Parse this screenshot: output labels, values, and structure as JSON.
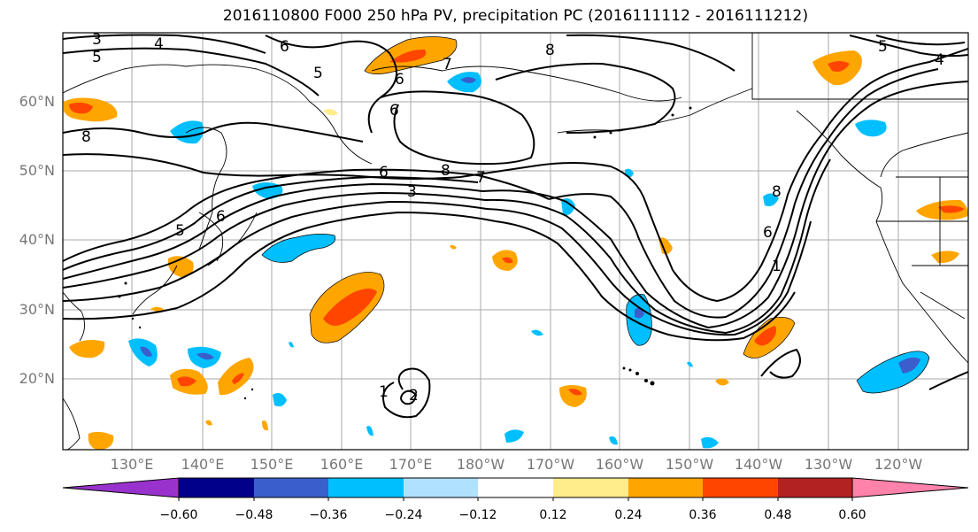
{
  "title": "2016110800 F000 250 hPa PV, precipitation PC (2016111112 - 2016111212)",
  "lat_labels": [
    "60°N",
    "50°N",
    "40°N",
    "30°N",
    "20°N"
  ],
  "lon_labels": [
    "130°E",
    "140°E",
    "150°E",
    "160°E",
    "170°E",
    "180°W",
    "170°W",
    "160°W",
    "150°W",
    "140°W",
    "130°W",
    "120°W"
  ],
  "colorbar": {
    "tick_labels": [
      "−0.60",
      "−0.48",
      "−0.36",
      "−0.24",
      "−0.12",
      "0.12",
      "0.24",
      "0.36",
      "0.48",
      "0.60"
    ],
    "colors": [
      "#9932CC",
      "#00008B",
      "#3A5FCD",
      "#00BFFF",
      "#B0E2FF",
      "#FFFFFF",
      "#FFEC8B",
      "#FFA500",
      "#FF4500",
      "#B22222",
      "#FF82AB"
    ]
  },
  "contour_labels": [
    "3",
    "4",
    "5",
    "6",
    "6",
    "7",
    "8",
    "5",
    "4",
    "5",
    "6",
    "8",
    "8",
    "7",
    "6",
    "3",
    "5",
    "6",
    "8",
    "6",
    "1",
    "2",
    "1"
  ]
}
